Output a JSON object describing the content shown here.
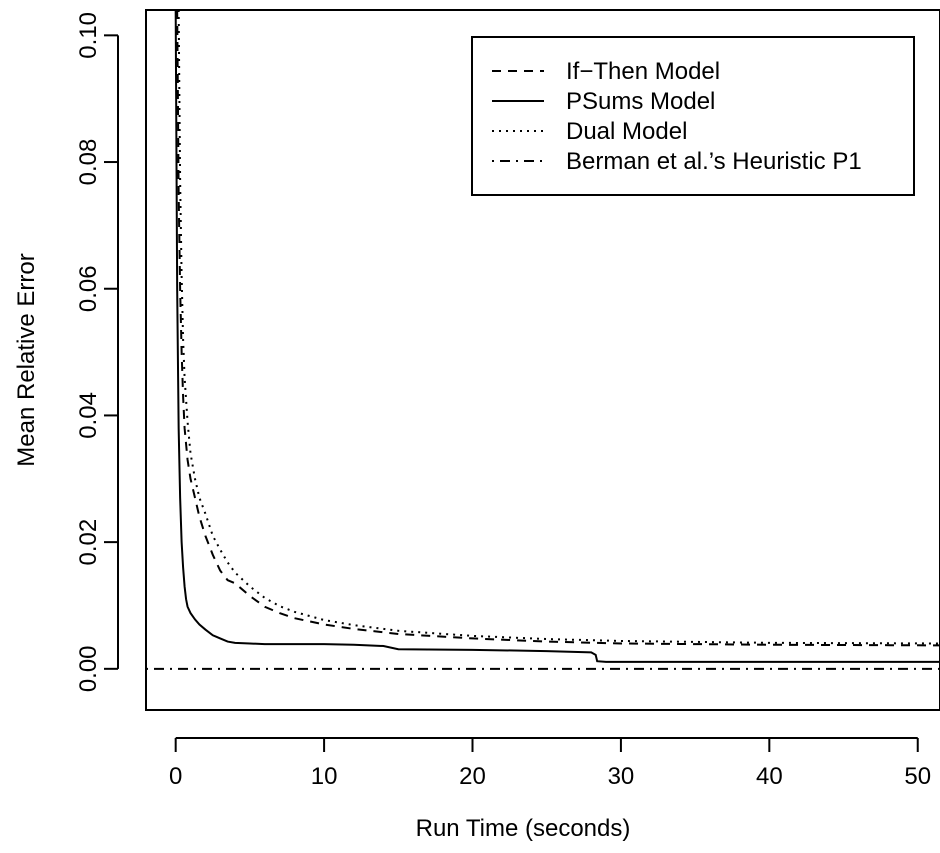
{
  "chart_data": {
    "type": "line",
    "xlabel": "Run Time (seconds)",
    "ylabel": "Mean Relative Error",
    "xlim": [
      -2,
      51.5
    ],
    "ylim": [
      -0.0065,
      0.104
    ],
    "x_ticks": [
      0,
      10,
      20,
      30,
      40,
      50
    ],
    "x_tick_labels": [
      "0",
      "10",
      "20",
      "30",
      "40",
      "50"
    ],
    "y_ticks": [
      0.0,
      0.02,
      0.04,
      0.06,
      0.08,
      0.1
    ],
    "y_tick_labels": [
      "0.00",
      "0.02",
      "0.04",
      "0.06",
      "0.08",
      "0.10"
    ],
    "legend_position": "top-right",
    "grid": false,
    "series": [
      {
        "name": "If−Then Model",
        "dash": "dashed",
        "x": [
          0.1,
          0.15,
          0.2,
          0.3,
          0.4,
          0.5,
          0.6,
          0.8,
          1.0,
          1.3,
          1.6,
          2.0,
          2.5,
          3.0,
          3.5,
          4.0,
          5.0,
          6.0,
          7.0,
          8.0,
          10.0,
          12.0,
          15.0,
          20.0,
          25.0,
          30.0,
          40.0,
          51.5
        ],
        "y": [
          0.104,
          0.09,
          0.075,
          0.06,
          0.05,
          0.043,
          0.038,
          0.033,
          0.03,
          0.027,
          0.024,
          0.021,
          0.018,
          0.0155,
          0.014,
          0.0135,
          0.0115,
          0.0098,
          0.0088,
          0.008,
          0.007,
          0.0063,
          0.0055,
          0.0048,
          0.0043,
          0.004,
          0.0038,
          0.0037
        ]
      },
      {
        "name": "PSums Model",
        "dash": "solid",
        "x": [
          0.0,
          0.1,
          0.2,
          0.3,
          0.4,
          0.5,
          0.6,
          0.7,
          0.8,
          1.0,
          1.3,
          1.6,
          2.0,
          2.5,
          3.0,
          3.5,
          4.0,
          5.0,
          6.0,
          8.0,
          10.0,
          12.0,
          14.0,
          15.0,
          20.0,
          25.0,
          28.0,
          28.3,
          28.4,
          29.0,
          35.0,
          40.0,
          51.5
        ],
        "y": [
          0.104,
          0.06,
          0.038,
          0.027,
          0.02,
          0.016,
          0.013,
          0.011,
          0.0098,
          0.0088,
          0.0078,
          0.007,
          0.0062,
          0.0053,
          0.0048,
          0.0043,
          0.0041,
          0.004,
          0.0039,
          0.0039,
          0.0039,
          0.0038,
          0.0036,
          0.0031,
          0.003,
          0.0028,
          0.0026,
          0.0022,
          0.0012,
          0.0011,
          0.0011,
          0.0011,
          0.0011
        ]
      },
      {
        "name": "Dual Model",
        "dash": "dotted",
        "x": [
          0.2,
          0.25,
          0.3,
          0.4,
          0.5,
          0.6,
          0.8,
          1.0,
          1.3,
          1.6,
          2.0,
          2.5,
          3.0,
          3.5,
          4.0,
          5.0,
          6.0,
          7.0,
          8.0,
          10.0,
          12.0,
          15.0,
          20.0,
          25.0,
          30.0,
          40.0,
          51.5
        ],
        "y": [
          0.104,
          0.09,
          0.077,
          0.062,
          0.052,
          0.046,
          0.039,
          0.034,
          0.03,
          0.027,
          0.0245,
          0.021,
          0.0188,
          0.0168,
          0.0152,
          0.013,
          0.0112,
          0.0099,
          0.009,
          0.0077,
          0.0069,
          0.006,
          0.0052,
          0.0047,
          0.0044,
          0.0041,
          0.004
        ]
      },
      {
        "name": "Berman et al.’s Heuristic P1",
        "dash": "dotdash",
        "x": [
          -2,
          51.5
        ],
        "y": [
          0.0,
          0.0
        ]
      }
    ]
  }
}
